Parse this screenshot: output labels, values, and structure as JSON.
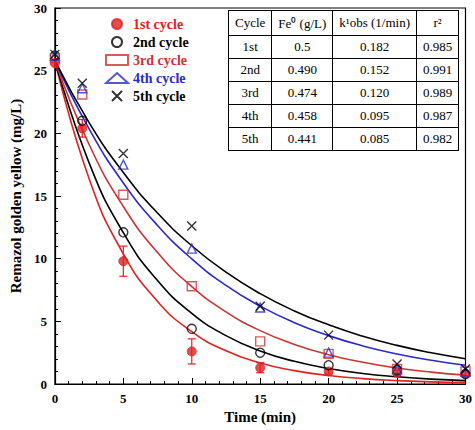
{
  "chart_data": {
    "type": "scatter",
    "x_label": "Time (min)",
    "y_label": "Remazol golden yellow (mg/L)",
    "xlim": [
      0,
      30
    ],
    "xticks": [
      0,
      5,
      10,
      15,
      20,
      25,
      30
    ],
    "ylim": [
      0,
      30
    ],
    "yticks": [
      0,
      5,
      10,
      15,
      20,
      25,
      30
    ],
    "grid": false,
    "legend": "upper left",
    "x": [
      0,
      2,
      5,
      10,
      15,
      20,
      25,
      30
    ],
    "curve_x": [
      0,
      2.5,
      5,
      7.5,
      10,
      12.5,
      15,
      17.5,
      20,
      22.5,
      25,
      27.5,
      30
    ],
    "series": [
      {
        "name": "1st cycle",
        "color": "#dd2222",
        "marker": "circle",
        "values": [
          25.6,
          20.4,
          9.8,
          2.6,
          1.3,
          1.0,
          0.9,
          0.8
        ],
        "errors": [
          0.3,
          0.7,
          1.2,
          1.0,
          0.4,
          0.2,
          0.2,
          0.2
        ],
        "curve": [
          25.8,
          16.37,
          10.38,
          6.59,
          4.18,
          2.65,
          1.68,
          1.07,
          0.68,
          0.43,
          0.27,
          0.17,
          0.11
        ]
      },
      {
        "name": "2nd cycle",
        "color": "#000000",
        "marker": "open_circle",
        "values": [
          26.2,
          21.0,
          12.1,
          4.4,
          2.5,
          1.5,
          1.1,
          0.8
        ],
        "curve": [
          25.8,
          17.64,
          12.07,
          8.25,
          5.64,
          3.86,
          2.64,
          1.81,
          1.24,
          0.84,
          0.58,
          0.39,
          0.27
        ]
      },
      {
        "name": "3rd cycle",
        "color": "#cc3333",
        "marker": "open_square",
        "values": [
          26.0,
          23.1,
          15.1,
          7.8,
          3.4,
          2.4,
          1.2,
          1.0
        ],
        "curve": [
          25.8,
          19.11,
          14.16,
          10.49,
          7.77,
          5.76,
          4.26,
          3.16,
          2.34,
          1.73,
          1.28,
          0.95,
          0.71
        ]
      },
      {
        "name": "4th cycle",
        "color": "#2a2acc",
        "marker": "open_triangle",
        "values": [
          26.2,
          23.6,
          17.5,
          10.8,
          6.1,
          2.5,
          1.2,
          1.0
        ],
        "curve": [
          25.8,
          20.35,
          16.04,
          12.65,
          9.98,
          7.87,
          6.21,
          4.89,
          3.86,
          3.04,
          2.4,
          1.89,
          1.49
        ]
      },
      {
        "name": "5th cycle",
        "color": "#000000",
        "marker": "x",
        "values": [
          26.3,
          24.0,
          18.4,
          12.6,
          6.2,
          3.9,
          1.6,
          1.2
        ],
        "curve": [
          25.8,
          20.86,
          16.87,
          13.64,
          11.03,
          8.92,
          7.21,
          5.83,
          4.72,
          3.81,
          3.08,
          2.49,
          2.02
        ]
      }
    ],
    "table": {
      "header": [
        "Cycle",
        "Fe⁰ (g/L)",
        "k¹obs (1/min)",
        "r²"
      ],
      "rows": [
        [
          "1st",
          "0.5",
          "0.182",
          "0.985"
        ],
        [
          "2nd",
          "0.490",
          "0.152",
          "0.991"
        ],
        [
          "3rd",
          "0.474",
          "0.120",
          "0.989"
        ],
        [
          "4th",
          "0.458",
          "0.095",
          "0.987"
        ],
        [
          "5th",
          "0.441",
          "0.085",
          "0.982"
        ]
      ]
    }
  }
}
